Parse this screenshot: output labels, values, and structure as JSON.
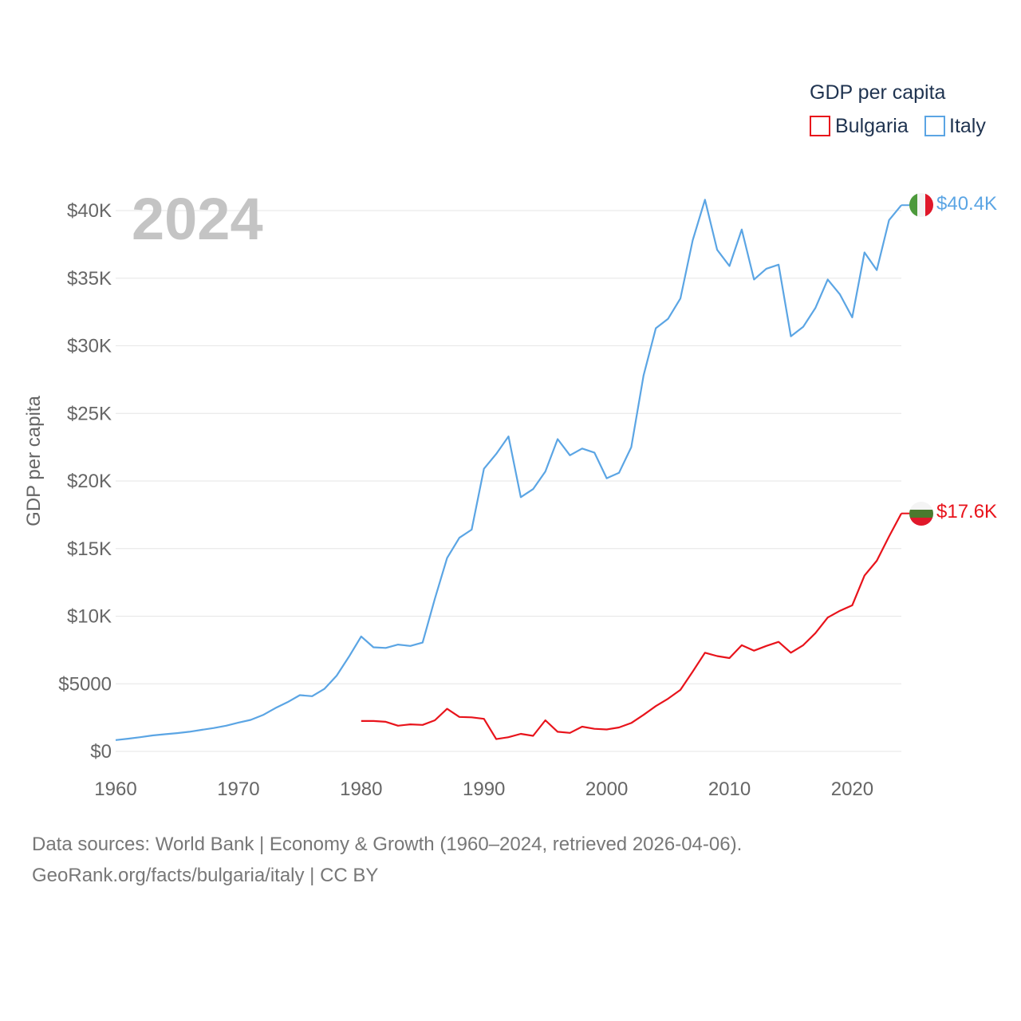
{
  "chart_data": {
    "type": "line",
    "title": "2024",
    "ylabel": "GDP per capita",
    "xlabel": "",
    "legend_title": "GDP per capita",
    "legend_position": "top-right",
    "xlim": [
      1960,
      2024
    ],
    "ylim": [
      0,
      42000
    ],
    "x_ticks": [
      1960,
      1970,
      1980,
      1990,
      2000,
      2010,
      2020
    ],
    "y_ticks": [
      {
        "value": 0,
        "label": "$0"
      },
      {
        "value": 5000,
        "label": "$5000"
      },
      {
        "value": 10000,
        "label": "$10K"
      },
      {
        "value": 15000,
        "label": "$15K"
      },
      {
        "value": 20000,
        "label": "$20K"
      },
      {
        "value": 25000,
        "label": "$25K"
      },
      {
        "value": 30000,
        "label": "$30K"
      },
      {
        "value": 35000,
        "label": "$35K"
      },
      {
        "value": 40000,
        "label": "$40K"
      }
    ],
    "series": [
      {
        "name": "Bulgaria",
        "color": "#e8131b",
        "end_label": "$17.6K",
        "flag": "bulgaria-flag",
        "x": [
          1980,
          1981,
          1982,
          1983,
          1984,
          1985,
          1986,
          1987,
          1988,
          1989,
          1990,
          1991,
          1992,
          1993,
          1994,
          1995,
          1996,
          1997,
          1998,
          1999,
          2000,
          2001,
          2002,
          2003,
          2004,
          2005,
          2006,
          2007,
          2008,
          2009,
          2010,
          2011,
          2012,
          2013,
          2014,
          2015,
          2016,
          2017,
          2018,
          2019,
          2020,
          2021,
          2022,
          2023,
          2024
        ],
        "values": [
          2250,
          2250,
          2190,
          1900,
          2000,
          1960,
          2300,
          3150,
          2550,
          2520,
          2410,
          910,
          1050,
          1300,
          1150,
          2300,
          1450,
          1370,
          1830,
          1670,
          1620,
          1770,
          2100,
          2700,
          3350,
          3900,
          4550,
          5900,
          7300,
          7050,
          6900,
          7850,
          7450,
          7800,
          8100,
          7300,
          7850,
          8750,
          9900,
          10400,
          10800,
          13000,
          14100,
          15900,
          17600
        ]
      },
      {
        "name": "Italy",
        "color": "#5ba5e4",
        "end_label": "$40.4K",
        "flag": "italy-flag",
        "x": [
          1960,
          1961,
          1962,
          1963,
          1964,
          1965,
          1966,
          1967,
          1968,
          1969,
          1970,
          1971,
          1972,
          1973,
          1974,
          1975,
          1976,
          1977,
          1978,
          1979,
          1980,
          1981,
          1982,
          1983,
          1984,
          1985,
          1986,
          1987,
          1988,
          1989,
          1990,
          1991,
          1992,
          1993,
          1994,
          1995,
          1996,
          1997,
          1998,
          1999,
          2000,
          2001,
          2002,
          2003,
          2004,
          2005,
          2006,
          2007,
          2008,
          2009,
          2010,
          2011,
          2012,
          2013,
          2014,
          2015,
          2016,
          2017,
          2018,
          2019,
          2020,
          2021,
          2022,
          2023,
          2024
        ],
        "values": [
          840,
          940,
          1050,
          1180,
          1270,
          1350,
          1450,
          1590,
          1730,
          1900,
          2130,
          2330,
          2690,
          3200,
          3640,
          4160,
          4080,
          4620,
          5600,
          7000,
          8500,
          7700,
          7650,
          7900,
          7800,
          8050,
          11300,
          14300,
          15800,
          16400,
          20900,
          22000,
          23300,
          18800,
          19400,
          20700,
          23100,
          21900,
          22400,
          22100,
          20200,
          20600,
          22500,
          27800,
          31300,
          32000,
          33500,
          37800,
          40800,
          37100,
          35900,
          38600,
          34900,
          35700,
          36000,
          30700,
          31400,
          32800,
          34900,
          33800,
          32100,
          36900,
          35600,
          39300,
          40400
        ]
      }
    ]
  },
  "footer": {
    "line1": "Data sources: World Bank | Economy & Growth (1960–2024, retrieved 2026-04-06).",
    "line2": "GeoRank.org/facts/bulgaria/italy | CC BY"
  }
}
